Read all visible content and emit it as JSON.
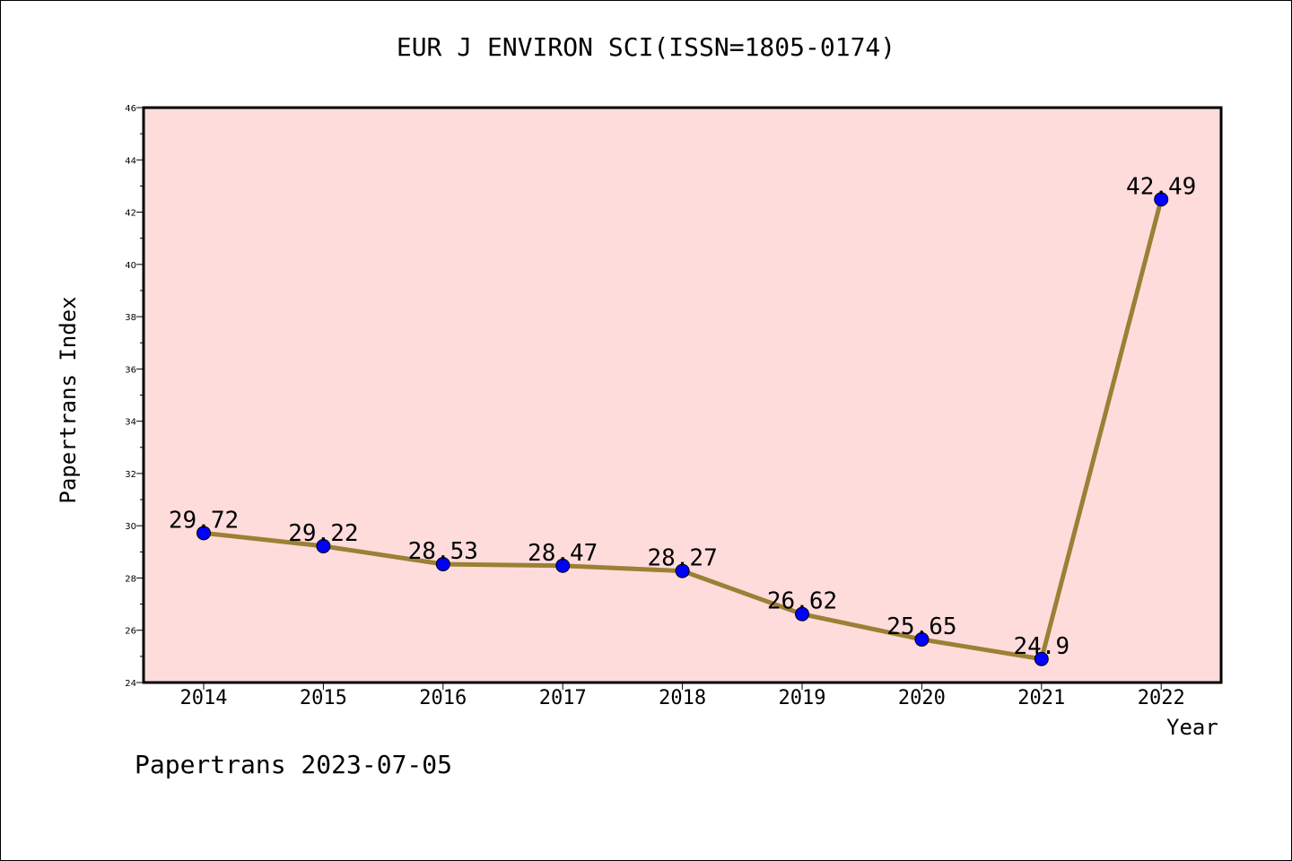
{
  "chart_data": {
    "type": "line",
    "title": "EUR J ENVIRON SCI(ISSN=1805-0174)",
    "xlabel": "Year",
    "ylabel": "Papertrans Index",
    "x": [
      "2014",
      "2015",
      "2016",
      "2017",
      "2018",
      "2019",
      "2020",
      "2021",
      "2022"
    ],
    "series": [
      {
        "values": [
          29.72,
          29.22,
          28.53,
          28.47,
          28.27,
          26.62,
          25.65,
          24.9,
          42.49
        ]
      }
    ],
    "data_labels": [
      "29.72",
      "29.22",
      "28.53",
      "28.47",
      "28.27",
      "26.62",
      "25.65",
      "24.9",
      "42.49"
    ],
    "ylim": [
      24,
      46
    ],
    "yticks": [
      24,
      26,
      28,
      30,
      32,
      34,
      36,
      38,
      40,
      42,
      44,
      46
    ],
    "grid": false,
    "legend": "none",
    "colors": {
      "plot_background": "#ffdcdc",
      "line": "#9b8035",
      "marker": "#0000ff"
    }
  },
  "footer": "Papertrans 2023-07-05"
}
